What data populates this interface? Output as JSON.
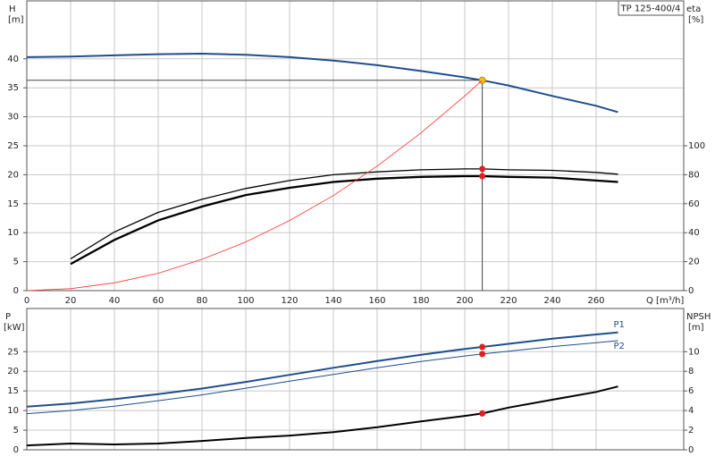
{
  "chart_data": [
    {
      "type": "line",
      "title": "TP 125-400/4",
      "y_label": "H",
      "y_unit": "[m]",
      "y2_label": "eta",
      "y2_unit": "[%]",
      "x_label": "Q [m³/h]",
      "x": [
        0,
        20,
        40,
        60,
        80,
        100,
        120,
        140,
        160,
        180,
        200,
        208,
        220,
        240,
        260,
        270
      ],
      "xlim": [
        0,
        300
      ],
      "xticks": [
        0,
        20,
        40,
        60,
        80,
        100,
        120,
        140,
        160,
        180,
        200,
        220,
        240,
        260
      ],
      "ylim": [
        0,
        50
      ],
      "yticks": [
        0,
        5,
        10,
        15,
        20,
        25,
        30,
        35,
        40
      ],
      "y2lim": [
        0,
        200
      ],
      "y2ticks": [
        0,
        20,
        40,
        60,
        80,
        100
      ],
      "grid": true,
      "operating_point": {
        "x": 208,
        "y": 36.3,
        "color": "#444444",
        "marker_color": "#f5c518"
      },
      "series": [
        {
          "color": "#1f4e8c",
          "width": 2,
          "values": [
            40.3,
            40.4,
            40.6,
            40.8,
            40.9,
            40.7,
            40.3,
            39.7,
            38.9,
            37.9,
            36.8,
            36.3,
            35.4,
            33.6,
            31.9,
            30.8
          ]
        },
        {
          "color": "#000000",
          "width": 1.3,
          "axis": "y2",
          "marker_color": "#e02020",
          "values": [
            null,
            22,
            40.5,
            54,
            63,
            70.5,
            76,
            80,
            82,
            83.4,
            84,
            84,
            83.4,
            83,
            81.6,
            80.4
          ]
        },
        {
          "color": "#000000",
          "width": 2.3,
          "axis": "y2",
          "marker_color": "#e02020",
          "values": [
            null,
            18.4,
            35,
            48.5,
            58,
            66,
            71,
            75,
            77.3,
            78.5,
            79,
            79,
            78.5,
            78,
            76,
            75
          ]
        },
        {
          "color": "#ff3030",
          "width": 0.8,
          "values": [
            0,
            0.34,
            1.34,
            3.0,
            5.4,
            8.4,
            12.1,
            16.4,
            21.5,
            27.2,
            33.6,
            36.3,
            null,
            null,
            null,
            null
          ]
        }
      ]
    },
    {
      "type": "line",
      "y_label": "P",
      "y_unit": "[kW]",
      "y2_label": "NPSH",
      "y2_unit": "[m]",
      "x": [
        0,
        20,
        40,
        60,
        80,
        100,
        120,
        140,
        160,
        180,
        200,
        208,
        220,
        240,
        260,
        270
      ],
      "xlim": [
        0,
        300
      ],
      "ylim": [
        0,
        36
      ],
      "yticks": [
        0,
        5,
        10,
        15,
        20,
        25
      ],
      "y2lim": [
        0,
        14.4
      ],
      "y2ticks": [
        0,
        2,
        4,
        6,
        8,
        10
      ],
      "grid": true,
      "series": [
        {
          "name": "P1",
          "color": "#1f4e8c",
          "width": 2,
          "marker_color": "#e02020",
          "values": [
            11.0,
            11.8,
            12.9,
            14.2,
            15.6,
            17.3,
            19.1,
            20.9,
            22.6,
            24.2,
            25.7,
            26.2,
            27.0,
            28.3,
            29.4,
            29.9
          ]
        },
        {
          "name": "P2",
          "color": "#1f4e8c",
          "width": 1,
          "marker_color": "#e02020",
          "values": [
            9.2,
            10.0,
            11.1,
            12.5,
            14.0,
            15.7,
            17.5,
            19.2,
            20.9,
            22.5,
            23.9,
            24.4,
            25.1,
            26.3,
            27.3,
            27.8
          ]
        },
        {
          "color": "#000000",
          "width": 2,
          "axis": "y2",
          "marker_color": "#e02020",
          "values": [
            0.45,
            0.64,
            0.55,
            0.64,
            0.9,
            1.2,
            1.45,
            1.8,
            2.3,
            2.9,
            3.45,
            3.7,
            4.3,
            5.1,
            5.9,
            6.45
          ]
        }
      ]
    }
  ]
}
